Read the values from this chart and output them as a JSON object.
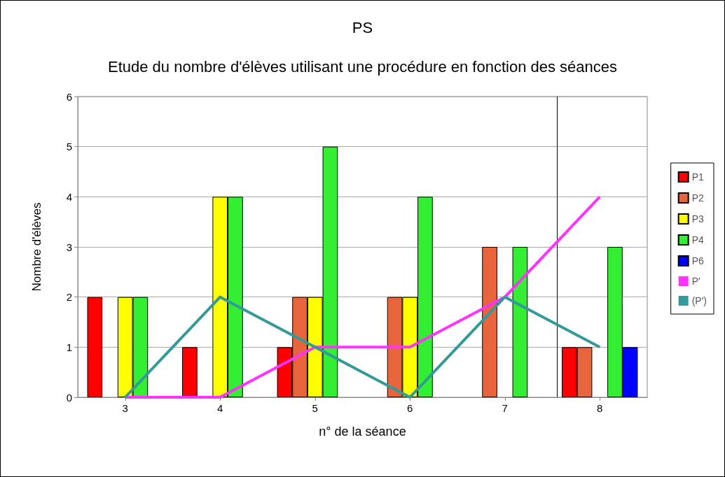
{
  "chart_data": {
    "type": "bar",
    "title": "PS",
    "subtitle": "Etude du nombre d'élèves utilisant une procédure en fonction des séances",
    "xlabel": "n° de la séance",
    "ylabel": "Nombre d'élèves",
    "x": [
      3,
      4,
      5,
      6,
      7,
      8
    ],
    "xlim": [
      2.5,
      8.5
    ],
    "xticks": [
      3,
      4,
      5,
      6,
      7,
      8
    ],
    "ylim": [
      0,
      6
    ],
    "yticks": [
      0,
      1,
      2,
      3,
      4,
      5,
      6
    ],
    "grid": "y",
    "legend": "right",
    "series": [
      {
        "name": "P1",
        "color": "#ff0000",
        "values": [
          2,
          1,
          1,
          null,
          null,
          1
        ]
      },
      {
        "name": "P2",
        "color": "#e8643c",
        "values": [
          null,
          null,
          2,
          2,
          3,
          1
        ]
      },
      {
        "name": "P3",
        "color": "#ffff00",
        "values": [
          2,
          4,
          2,
          2,
          null,
          null
        ]
      },
      {
        "name": "P4",
        "color": "#33ee33",
        "values": [
          2,
          4,
          5,
          4,
          3,
          3
        ]
      },
      {
        "name": "P6",
        "color": "#0000ff",
        "values": [
          null,
          null,
          null,
          null,
          null,
          1
        ]
      },
      {
        "name": "P'",
        "type": "line",
        "color": "#ff33ff",
        "values": [
          0,
          0,
          1,
          1,
          2,
          4
        ]
      },
      {
        "name": "(P')",
        "type": "line",
        "color": "#339999",
        "values": [
          0,
          2,
          1,
          0,
          2,
          1
        ]
      }
    ],
    "ref_lines": [
      {
        "axis": "x",
        "value": 7.55,
        "color": "#000000"
      }
    ]
  }
}
